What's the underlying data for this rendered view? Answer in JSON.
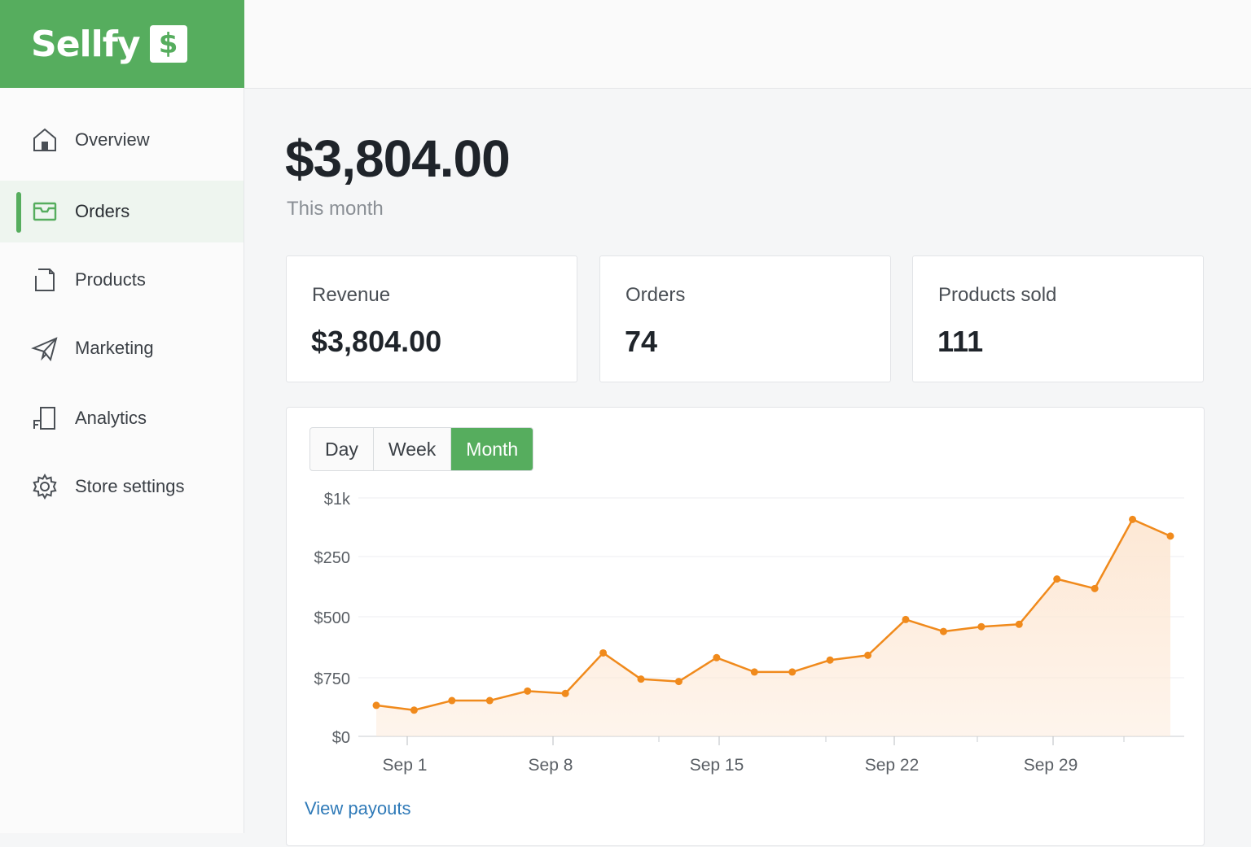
{
  "brand": {
    "name": "Sellfy",
    "badge_glyph": "$",
    "color": "#56ad5e"
  },
  "sidebar": {
    "items": [
      {
        "id": "overview",
        "label": "Overview",
        "icon": "home-icon",
        "active": false
      },
      {
        "id": "orders",
        "label": "Orders",
        "icon": "inbox-icon",
        "active": true
      },
      {
        "id": "products",
        "label": "Products",
        "icon": "file-icon",
        "active": false
      },
      {
        "id": "marketing",
        "label": "Marketing",
        "icon": "paper-plane-icon",
        "active": false
      },
      {
        "id": "analytics",
        "label": "Analytics",
        "icon": "analytics-icon",
        "active": false
      },
      {
        "id": "store_settings",
        "label": "Store settings",
        "icon": "gear-icon",
        "active": false
      }
    ]
  },
  "summary": {
    "value": "$3,804.00",
    "period": "This month"
  },
  "stats": [
    {
      "label": "Revenue",
      "value": "$3,804.00"
    },
    {
      "label": "Orders",
      "value": "74"
    },
    {
      "label": "Products sold",
      "value": "111"
    }
  ],
  "range_tabs": {
    "options": [
      "Day",
      "Week",
      "Month"
    ],
    "selected": "Month"
  },
  "chart_data": {
    "type": "area",
    "x_tick_labels": [
      "Sep 1",
      "Sep 8",
      "Sep 15",
      "Sep 22",
      "Sep 29"
    ],
    "y_tick_labels": [
      "$1k",
      "$250",
      "$500",
      "$750",
      "$0"
    ],
    "line_color": "#f08a1c",
    "fill_color": "#fde8d5",
    "grid": true,
    "points": [
      {
        "x": 0.0,
        "y": 0.13
      },
      {
        "x": 1.0,
        "y": 0.11
      },
      {
        "x": 2.0,
        "y": 0.15
      },
      {
        "x": 3.0,
        "y": 0.15
      },
      {
        "x": 4.0,
        "y": 0.19
      },
      {
        "x": 5.0,
        "y": 0.18
      },
      {
        "x": 6.0,
        "y": 0.35
      },
      {
        "x": 7.0,
        "y": 0.24
      },
      {
        "x": 8.0,
        "y": 0.23
      },
      {
        "x": 9.0,
        "y": 0.33
      },
      {
        "x": 10.0,
        "y": 0.27
      },
      {
        "x": 11.0,
        "y": 0.27
      },
      {
        "x": 12.0,
        "y": 0.32
      },
      {
        "x": 13.0,
        "y": 0.34
      },
      {
        "x": 14.0,
        "y": 0.49
      },
      {
        "x": 15.0,
        "y": 0.44
      },
      {
        "x": 16.0,
        "y": 0.46
      },
      {
        "x": 17.0,
        "y": 0.47
      },
      {
        "x": 18.0,
        "y": 0.66
      },
      {
        "x": 19.0,
        "y": 0.62
      },
      {
        "x": 20.0,
        "y": 0.91
      },
      {
        "x": 21.0,
        "y": 0.84
      }
    ],
    "y_axis_note": "values expressed as fraction of the chart's top gridline ($1k row)"
  },
  "links": {
    "view_payouts": "View payouts"
  }
}
